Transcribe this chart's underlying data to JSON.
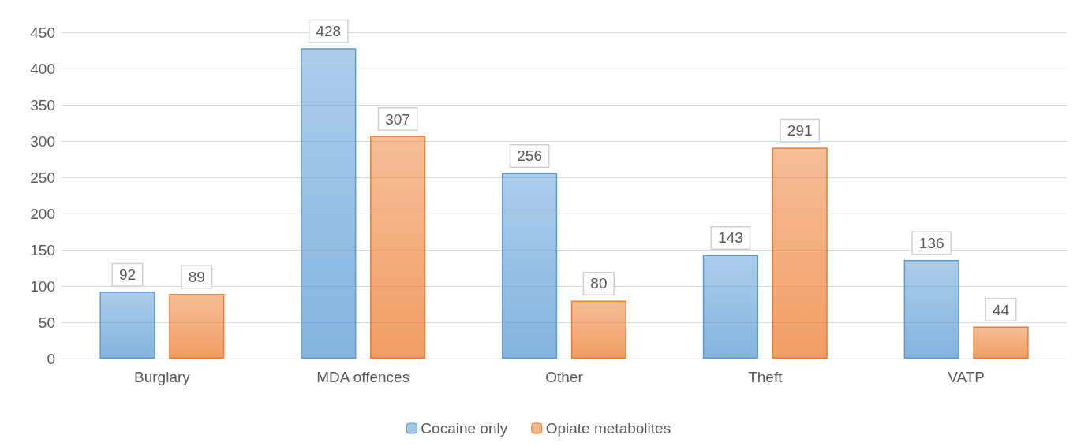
{
  "chart_data": {
    "type": "bar",
    "categories": [
      "Burglary",
      "MDA offences",
      "Other",
      "Theft",
      "VATP"
    ],
    "series": [
      {
        "name": "Cocaine only",
        "color": "#5b9bd5",
        "values": [
          92,
          428,
          256,
          143,
          136
        ]
      },
      {
        "name": "Opiate metabolites",
        "color": "#ed7d31",
        "values": [
          89,
          307,
          80,
          291,
          44
        ]
      }
    ],
    "ylim": [
      0,
      450
    ],
    "yticks": [
      0,
      50,
      100,
      150,
      200,
      250,
      300,
      350,
      400,
      450
    ],
    "grid": "y",
    "legend": "bottom",
    "data_labels": true
  }
}
